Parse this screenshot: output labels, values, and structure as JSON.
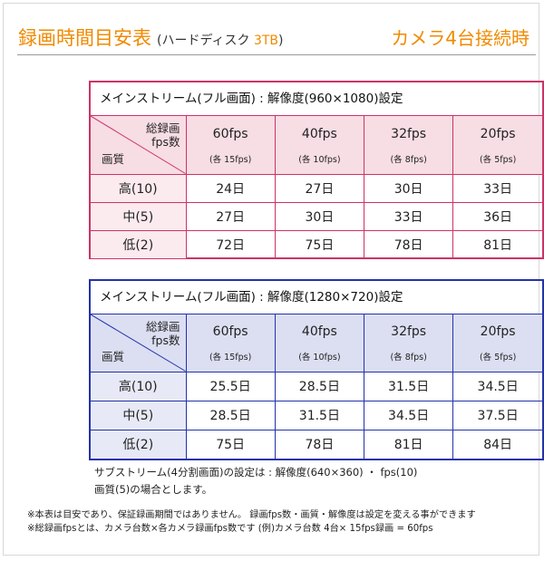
{
  "header": {
    "title": "録画時間目安表",
    "subtitle_pre": "(ハードディスク ",
    "subtitle_accent": "3TB",
    "subtitle_post": ")",
    "right_title": "カメラ4台接続時"
  },
  "tables": [
    {
      "caption": "メインストリーム(フル画面) : 解像度(960×1080)設定",
      "corner_top_line1": "総録画",
      "corner_top_line2": "fps数",
      "corner_bottom": "画質",
      "fps_headers": [
        {
          "fps": "60fps",
          "per": "(各 15fps)"
        },
        {
          "fps": "40fps",
          "per": "(各 10fps)"
        },
        {
          "fps": "32fps",
          "per": "(各 8fps)"
        },
        {
          "fps": "20fps",
          "per": "(各 5fps)"
        }
      ],
      "rows": [
        {
          "label": "高(10)",
          "values": [
            "24日",
            "27日",
            "30日",
            "33日"
          ]
        },
        {
          "label": "中(5)",
          "values": [
            "27日",
            "30日",
            "33日",
            "36日"
          ]
        },
        {
          "label": "低(2)",
          "values": [
            "72日",
            "75日",
            "78日",
            "81日"
          ]
        }
      ]
    },
    {
      "caption": "メインストリーム(フル画面) : 解像度(1280×720)設定",
      "corner_top_line1": "総録画",
      "corner_top_line2": "fps数",
      "corner_bottom": "画質",
      "fps_headers": [
        {
          "fps": "60fps",
          "per": "(各 15fps)"
        },
        {
          "fps": "40fps",
          "per": "(各 10fps)"
        },
        {
          "fps": "32fps",
          "per": "(各 8fps)"
        },
        {
          "fps": "20fps",
          "per": "(各 5fps)"
        }
      ],
      "rows": [
        {
          "label": "高(10)",
          "values": [
            "25.5日",
            "28.5日",
            "31.5日",
            "34.5日"
          ]
        },
        {
          "label": "中(5)",
          "values": [
            "28.5日",
            "31.5日",
            "34.5日",
            "37.5日"
          ]
        },
        {
          "label": "低(2)",
          "values": [
            "75日",
            "78日",
            "81日",
            "84日"
          ]
        }
      ]
    }
  ],
  "substream_line1": "サブストリーム(4分割画面)の設定は : 解像度(640×360) ・ fps(10)",
  "substream_line2": "画質(5)の場合とします。",
  "notes": [
    "※本表は目安であり、保証録画期間ではありません。   録画fps数・画質・解像度は設定を変える事ができます",
    "※総録画fpsとは、カメラ台数×各カメラ録画fps数です  (例)カメラ台数 4台× 15fps録画 = 60fps"
  ],
  "colors": {
    "accent": "#f08a00",
    "table1_border": "#cc3366",
    "table2_border": "#2233aa"
  }
}
